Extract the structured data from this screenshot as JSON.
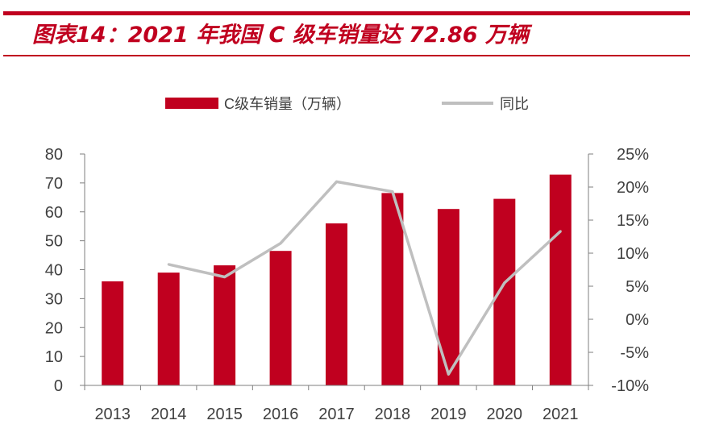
{
  "header": {
    "title": "图表14：2021 年我国 C 级车销量达 72.86 万辆"
  },
  "colors": {
    "accent": "#c0001f",
    "bar": "#c0001f",
    "line": "#bfbfbf",
    "axis": "#7f7f7f",
    "text": "#404040"
  },
  "chart_data": {
    "type": "bar",
    "categories": [
      "2013",
      "2014",
      "2015",
      "2016",
      "2017",
      "2018",
      "2019",
      "2020",
      "2021"
    ],
    "series": [
      {
        "name": "C级车销量（万辆）",
        "type": "bar",
        "axis": "left",
        "values": [
          36,
          39,
          41.5,
          46.5,
          56,
          66.5,
          61,
          64.5,
          72.86
        ]
      },
      {
        "name": "同比",
        "type": "line",
        "axis": "right",
        "values": [
          null,
          8.3,
          6.4,
          11.5,
          20.8,
          19.3,
          -8.3,
          5.5,
          13.3
        ]
      }
    ],
    "y_left": {
      "lim": [
        0,
        80
      ],
      "ticks": [
        "0",
        "10",
        "20",
        "30",
        "40",
        "50",
        "60",
        "70",
        "80"
      ]
    },
    "y_right": {
      "lim": [
        -10,
        25
      ],
      "ticks": [
        "-10%",
        "-5%",
        "0%",
        "5%",
        "10%",
        "15%",
        "20%",
        "25%"
      ]
    },
    "legend_position": "top-center",
    "grid": false
  }
}
